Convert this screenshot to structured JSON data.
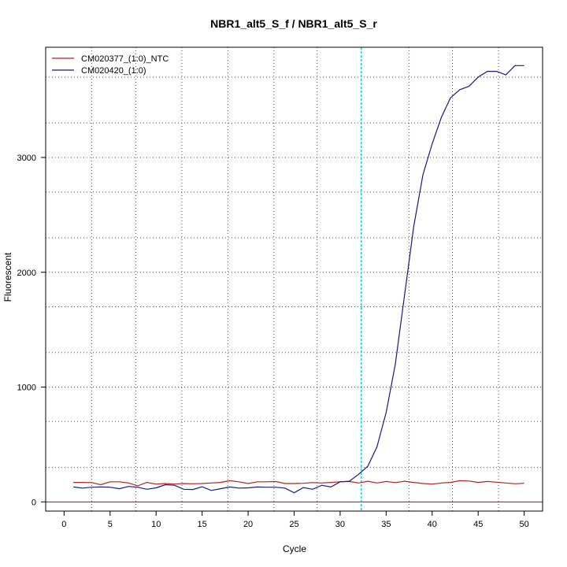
{
  "chart_data": {
    "type": "line",
    "title": "NBR1_alt5_S_f / NBR1_alt5_S_r",
    "xlabel": "Cycle",
    "ylabel": "Fluorescent",
    "xlim": [
      -2,
      52
    ],
    "ylim": [
      -80,
      3960
    ],
    "x_ticks": [
      0,
      5,
      10,
      15,
      20,
      25,
      30,
      35,
      40,
      45,
      50
    ],
    "y_ticks": [
      0,
      1000,
      2000,
      3000
    ],
    "y_minor_grid": [
      300,
      700,
      1300,
      1700,
      2300,
      2700,
      3300,
      3700
    ],
    "x_minor_grid": [
      3,
      7.8,
      12.8,
      17.8,
      22.8,
      27.5,
      37.5,
      42.2,
      47.2
    ],
    "grid": true,
    "legend_position": "top-left",
    "threshold_cycle": 32.3,
    "threshold_color": "#00c8e6",
    "baseline_value": 0,
    "baseline_color": "#cc0000",
    "x": [
      1,
      2,
      3,
      4,
      5,
      6,
      7,
      8,
      9,
      10,
      11,
      12,
      13,
      14,
      15,
      16,
      17,
      18,
      19,
      20,
      21,
      22,
      23,
      24,
      25,
      26,
      27,
      28,
      29,
      30,
      31,
      32,
      33,
      34,
      35,
      36,
      37,
      38,
      39,
      40,
      41,
      42,
      43,
      44,
      45,
      46,
      47,
      48,
      49,
      50
    ],
    "series": [
      {
        "name": "CM020377_(1:0)_NTC",
        "color": "#b22222",
        "values": [
          170,
          170,
          168,
          150,
          175,
          175,
          165,
          140,
          170,
          155,
          160,
          155,
          160,
          158,
          160,
          165,
          170,
          185,
          175,
          160,
          175,
          175,
          178,
          160,
          160,
          162,
          168,
          165,
          170,
          175,
          178,
          165,
          180,
          165,
          178,
          168,
          180,
          170,
          160,
          155,
          165,
          170,
          185,
          182,
          170,
          178,
          172,
          165,
          158,
          162
        ]
      },
      {
        "name": "CM020420_(1:0)",
        "color": "#1a1a80",
        "values": [
          130,
          120,
          128,
          130,
          128,
          115,
          135,
          128,
          110,
          122,
          150,
          145,
          110,
          108,
          132,
          100,
          115,
          130,
          120,
          122,
          130,
          128,
          128,
          120,
          80,
          125,
          110,
          145,
          130,
          175,
          180,
          240,
          310,
          480,
          780,
          1200,
          1800,
          2400,
          2850,
          3120,
          3350,
          3520,
          3590,
          3620,
          3700,
          3750,
          3750,
          3720,
          3800,
          3800
        ]
      }
    ]
  }
}
